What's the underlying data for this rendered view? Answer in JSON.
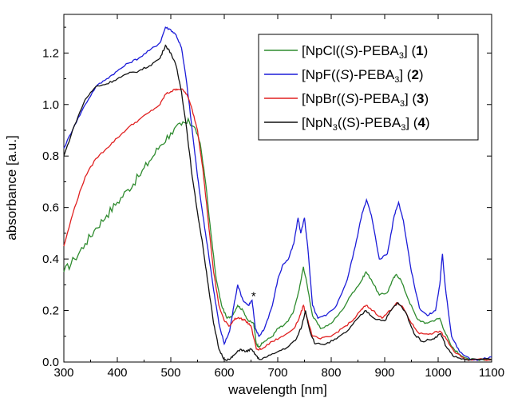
{
  "chart_data": {
    "type": "line",
    "title": "",
    "xlabel": "wavelength [nm]",
    "ylabel": "absorbance [a.u.]",
    "xlim": [
      300,
      1100
    ],
    "ylim": [
      0.0,
      1.35
    ],
    "x_ticks": [
      300,
      400,
      500,
      600,
      700,
      800,
      900,
      1000,
      1100
    ],
    "y_ticks": [
      0.0,
      0.2,
      0.4,
      0.6,
      0.8,
      1.0,
      1.2
    ],
    "x_tick_labels": [
      "300",
      "400",
      "500",
      "600",
      "700",
      "800",
      "900",
      "1000",
      "1100"
    ],
    "y_tick_labels": [
      "0.0",
      "0.2",
      "0.4",
      "0.6",
      "0.8",
      "1.0",
      "1.2"
    ],
    "legend_position": "top-right",
    "annotations": [
      {
        "text": "*",
        "x": 655,
        "y": 0.24
      }
    ],
    "series": [
      {
        "legend": {
          "pre": "[NpCl((",
          "italic": "S",
          "mid": ")-PEBA",
          "sub": "3",
          "post": "] (",
          "bold": "1",
          "end": ")"
        },
        "color": "#2e8b2e",
        "points": [
          [
            300,
            0.35
          ],
          [
            320,
            0.4
          ],
          [
            340,
            0.46
          ],
          [
            360,
            0.52
          ],
          [
            380,
            0.57
          ],
          [
            400,
            0.62
          ],
          [
            420,
            0.67
          ],
          [
            440,
            0.72
          ],
          [
            460,
            0.78
          ],
          [
            480,
            0.84
          ],
          [
            500,
            0.89
          ],
          [
            520,
            0.92
          ],
          [
            535,
            0.93
          ],
          [
            545,
            0.91
          ],
          [
            555,
            0.85
          ],
          [
            565,
            0.7
          ],
          [
            575,
            0.5
          ],
          [
            585,
            0.32
          ],
          [
            595,
            0.22
          ],
          [
            605,
            0.17
          ],
          [
            615,
            0.18
          ],
          [
            625,
            0.22
          ],
          [
            635,
            0.2
          ],
          [
            645,
            0.16
          ],
          [
            655,
            0.15
          ],
          [
            660,
            0.07
          ],
          [
            665,
            0.06
          ],
          [
            675,
            0.08
          ],
          [
            690,
            0.1
          ],
          [
            700,
            0.13
          ],
          [
            710,
            0.14
          ],
          [
            720,
            0.16
          ],
          [
            730,
            0.2
          ],
          [
            740,
            0.28
          ],
          [
            748,
            0.37
          ],
          [
            755,
            0.3
          ],
          [
            765,
            0.18
          ],
          [
            780,
            0.13
          ],
          [
            800,
            0.15
          ],
          [
            820,
            0.2
          ],
          [
            840,
            0.27
          ],
          [
            855,
            0.31
          ],
          [
            865,
            0.35
          ],
          [
            875,
            0.32
          ],
          [
            890,
            0.26
          ],
          [
            905,
            0.27
          ],
          [
            915,
            0.32
          ],
          [
            922,
            0.34
          ],
          [
            930,
            0.32
          ],
          [
            945,
            0.24
          ],
          [
            960,
            0.17
          ],
          [
            975,
            0.15
          ],
          [
            990,
            0.16
          ],
          [
            1003,
            0.17
          ],
          [
            1012,
            0.12
          ],
          [
            1025,
            0.06
          ],
          [
            1040,
            0.03
          ],
          [
            1060,
            0.01
          ],
          [
            1080,
            0.01
          ],
          [
            1100,
            0.01
          ]
        ]
      },
      {
        "legend": {
          "pre": "[NpF((",
          "italic": "S",
          "mid": ")-PEBA",
          "sub": "3",
          "post": "]  (",
          "bold": "2",
          "end": ")"
        },
        "color": "#1c1cd8",
        "points": [
          [
            300,
            0.83
          ],
          [
            320,
            0.92
          ],
          [
            340,
            1.0
          ],
          [
            360,
            1.07
          ],
          [
            380,
            1.1
          ],
          [
            400,
            1.13
          ],
          [
            420,
            1.16
          ],
          [
            440,
            1.18
          ],
          [
            460,
            1.21
          ],
          [
            480,
            1.24
          ],
          [
            490,
            1.3
          ],
          [
            500,
            1.29
          ],
          [
            510,
            1.27
          ],
          [
            520,
            1.22
          ],
          [
            530,
            1.08
          ],
          [
            540,
            0.9
          ],
          [
            550,
            0.72
          ],
          [
            560,
            0.57
          ],
          [
            570,
            0.43
          ],
          [
            580,
            0.28
          ],
          [
            590,
            0.15
          ],
          [
            600,
            0.07
          ],
          [
            610,
            0.12
          ],
          [
            618,
            0.22
          ],
          [
            625,
            0.3
          ],
          [
            635,
            0.24
          ],
          [
            645,
            0.22
          ],
          [
            652,
            0.24
          ],
          [
            658,
            0.13
          ],
          [
            665,
            0.1
          ],
          [
            675,
            0.13
          ],
          [
            690,
            0.22
          ],
          [
            700,
            0.32
          ],
          [
            710,
            0.38
          ],
          [
            720,
            0.4
          ],
          [
            730,
            0.46
          ],
          [
            738,
            0.56
          ],
          [
            743,
            0.5
          ],
          [
            750,
            0.56
          ],
          [
            756,
            0.45
          ],
          [
            765,
            0.22
          ],
          [
            775,
            0.17
          ],
          [
            790,
            0.18
          ],
          [
            810,
            0.22
          ],
          [
            830,
            0.32
          ],
          [
            845,
            0.45
          ],
          [
            858,
            0.58
          ],
          [
            866,
            0.63
          ],
          [
            875,
            0.57
          ],
          [
            890,
            0.4
          ],
          [
            905,
            0.42
          ],
          [
            918,
            0.57
          ],
          [
            926,
            0.62
          ],
          [
            935,
            0.55
          ],
          [
            950,
            0.35
          ],
          [
            965,
            0.21
          ],
          [
            980,
            0.18
          ],
          [
            995,
            0.2
          ],
          [
            1003,
            0.3
          ],
          [
            1008,
            0.42
          ],
          [
            1013,
            0.3
          ],
          [
            1025,
            0.1
          ],
          [
            1040,
            0.04
          ],
          [
            1060,
            0.01
          ],
          [
            1080,
            0.01
          ],
          [
            1100,
            0.02
          ]
        ]
      },
      {
        "legend": {
          "pre": "[NpBr((",
          "italic": "S",
          "mid": ")-PEBA",
          "sub": "3",
          "post": "] (",
          "bold": "3",
          "end": ")"
        },
        "color": "#e02020",
        "points": [
          [
            300,
            0.45
          ],
          [
            320,
            0.6
          ],
          [
            340,
            0.72
          ],
          [
            360,
            0.79
          ],
          [
            380,
            0.83
          ],
          [
            400,
            0.87
          ],
          [
            420,
            0.91
          ],
          [
            440,
            0.94
          ],
          [
            460,
            0.97
          ],
          [
            480,
            1.0
          ],
          [
            490,
            1.04
          ],
          [
            500,
            1.05
          ],
          [
            510,
            1.06
          ],
          [
            520,
            1.06
          ],
          [
            530,
            1.04
          ],
          [
            540,
            0.98
          ],
          [
            550,
            0.9
          ],
          [
            560,
            0.75
          ],
          [
            570,
            0.55
          ],
          [
            580,
            0.35
          ],
          [
            590,
            0.22
          ],
          [
            600,
            0.16
          ],
          [
            610,
            0.14
          ],
          [
            620,
            0.17
          ],
          [
            630,
            0.17
          ],
          [
            640,
            0.16
          ],
          [
            650,
            0.14
          ],
          [
            660,
            0.05
          ],
          [
            670,
            0.05
          ],
          [
            690,
            0.08
          ],
          [
            710,
            0.1
          ],
          [
            730,
            0.13
          ],
          [
            740,
            0.17
          ],
          [
            748,
            0.22
          ],
          [
            755,
            0.17
          ],
          [
            765,
            0.1
          ],
          [
            780,
            0.09
          ],
          [
            800,
            0.1
          ],
          [
            820,
            0.13
          ],
          [
            840,
            0.16
          ],
          [
            855,
            0.2
          ],
          [
            865,
            0.22
          ],
          [
            878,
            0.2
          ],
          [
            895,
            0.17
          ],
          [
            910,
            0.2
          ],
          [
            922,
            0.23
          ],
          [
            935,
            0.21
          ],
          [
            950,
            0.15
          ],
          [
            965,
            0.11
          ],
          [
            985,
            0.11
          ],
          [
            1003,
            0.12
          ],
          [
            1015,
            0.09
          ],
          [
            1030,
            0.04
          ],
          [
            1050,
            0.01
          ],
          [
            1070,
            0.01
          ],
          [
            1100,
            0.01
          ]
        ]
      },
      {
        "legend": {
          "pre": "[NpN",
          "italic": "",
          "mid": "",
          "sub": "3",
          "post": "((S)-PEBA",
          "sub2": "3",
          "post2": "] (",
          "bold": "4",
          "end": ")"
        },
        "color": "#111111",
        "points": [
          [
            300,
            0.8
          ],
          [
            320,
            0.92
          ],
          [
            340,
            1.02
          ],
          [
            360,
            1.07
          ],
          [
            380,
            1.08
          ],
          [
            400,
            1.1
          ],
          [
            420,
            1.12
          ],
          [
            440,
            1.13
          ],
          [
            460,
            1.15
          ],
          [
            480,
            1.18
          ],
          [
            490,
            1.23
          ],
          [
            500,
            1.2
          ],
          [
            510,
            1.15
          ],
          [
            520,
            1.05
          ],
          [
            530,
            0.9
          ],
          [
            540,
            0.72
          ],
          [
            550,
            0.58
          ],
          [
            560,
            0.45
          ],
          [
            570,
            0.3
          ],
          [
            580,
            0.15
          ],
          [
            590,
            0.05
          ],
          [
            600,
            0.01
          ],
          [
            610,
            0.01
          ],
          [
            620,
            0.03
          ],
          [
            630,
            0.05
          ],
          [
            640,
            0.04
          ],
          [
            650,
            0.05
          ],
          [
            658,
            0.03
          ],
          [
            665,
            0.01
          ],
          [
            680,
            0.02
          ],
          [
            700,
            0.04
          ],
          [
            720,
            0.06
          ],
          [
            735,
            0.09
          ],
          [
            745,
            0.14
          ],
          [
            752,
            0.2
          ],
          [
            760,
            0.12
          ],
          [
            770,
            0.07
          ],
          [
            790,
            0.07
          ],
          [
            810,
            0.09
          ],
          [
            830,
            0.12
          ],
          [
            850,
            0.17
          ],
          [
            865,
            0.2
          ],
          [
            880,
            0.17
          ],
          [
            900,
            0.16
          ],
          [
            915,
            0.21
          ],
          [
            925,
            0.23
          ],
          [
            940,
            0.19
          ],
          [
            955,
            0.11
          ],
          [
            970,
            0.08
          ],
          [
            990,
            0.09
          ],
          [
            1005,
            0.11
          ],
          [
            1015,
            0.06
          ],
          [
            1030,
            0.02
          ],
          [
            1050,
            0.01
          ],
          [
            1100,
            0.01
          ]
        ]
      }
    ]
  }
}
